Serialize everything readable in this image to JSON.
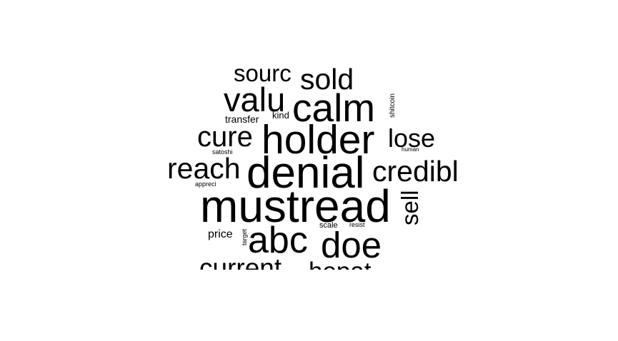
{
  "cloud": {
    "words": [
      {
        "id": "mustread",
        "text": "mustread"
      },
      {
        "id": "denial",
        "text": "denial"
      },
      {
        "id": "holder",
        "text": "holder"
      },
      {
        "id": "calm",
        "text": "calm"
      },
      {
        "id": "abc",
        "text": "abc"
      },
      {
        "id": "doe",
        "text": "doe"
      },
      {
        "id": "valu",
        "text": "valu"
      },
      {
        "id": "sold",
        "text": "sold"
      },
      {
        "id": "reach",
        "text": "reach"
      },
      {
        "id": "cure",
        "text": "cure"
      },
      {
        "id": "sourc",
        "text": "sourc"
      },
      {
        "id": "credibl",
        "text": "credibl"
      },
      {
        "id": "lose",
        "text": "lose"
      },
      {
        "id": "sell",
        "text": "sell"
      },
      {
        "id": "current",
        "text": "current"
      },
      {
        "id": "hepat",
        "text": "hepat"
      },
      {
        "id": "transfer",
        "text": "transfer"
      },
      {
        "id": "kind",
        "text": "kind"
      },
      {
        "id": "shitcoin",
        "text": "shitcoin"
      },
      {
        "id": "satoshi",
        "text": "satoshi"
      },
      {
        "id": "human",
        "text": "human"
      },
      {
        "id": "appreci",
        "text": "appreci"
      },
      {
        "id": "price",
        "text": "price"
      },
      {
        "id": "target",
        "text": "target"
      },
      {
        "id": "scale",
        "text": "scale"
      },
      {
        "id": "resist",
        "text": "resist"
      }
    ],
    "color": "#000000"
  }
}
